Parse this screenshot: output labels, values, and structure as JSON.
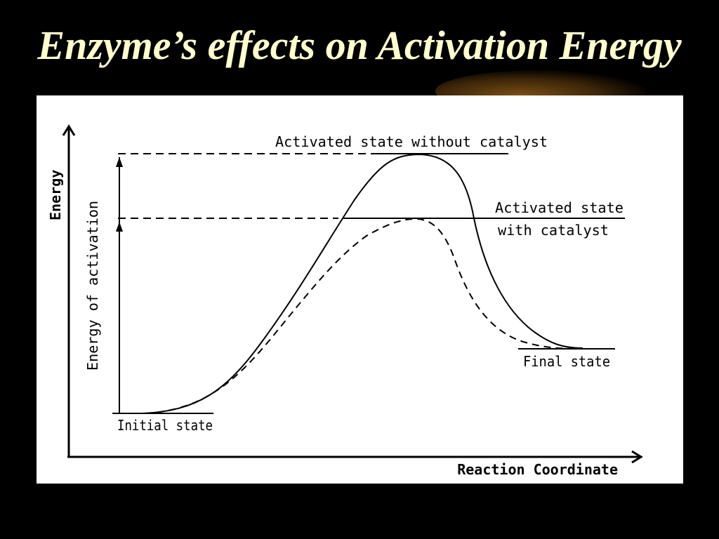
{
  "title": "Enzyme’s effects on Activation Energy",
  "colors": {
    "title": "#ffffcc",
    "background": "#000000",
    "panel": "#ffffff",
    "ink": "#000000"
  },
  "diagram": {
    "y_axis_label": "Energy",
    "x_axis_label": "Reaction Coordinate",
    "activation_label": "Energy of activation",
    "labels": {
      "without_catalyst": "Activated state without catalyst",
      "with_catalyst_line1": "Activated state",
      "with_catalyst_line2": "with catalyst",
      "initial": "Initial state",
      "final": "Final state"
    }
  }
}
